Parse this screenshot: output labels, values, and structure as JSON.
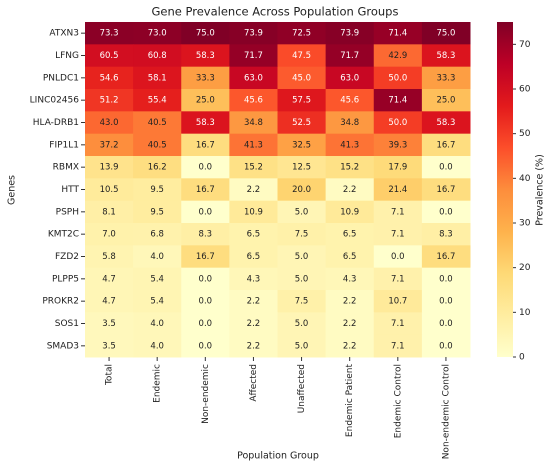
{
  "chart_data": {
    "type": "heatmap",
    "title": "Gene Prevalence Across Population Groups",
    "x_label": "Population Group",
    "y_label": "Genes",
    "colorbar_label": "Prevalence (%)",
    "columns": [
      "Total",
      "Endemic",
      "Non-endemic",
      "Affected",
      "Unaffected",
      "Endemic Patient",
      "Endemic Control",
      "Non-endemic Control"
    ],
    "rows": [
      "ATXN3",
      "LFNG",
      "PNLDC1",
      "LINC02456",
      "HLA-DRB1",
      "FIP1L1",
      "RBMX",
      "HTT",
      "PSPH",
      "KMT2C",
      "FZD2",
      "PLPP5",
      "PROKR2",
      "SOS1",
      "SMAD3"
    ],
    "values": [
      [
        73.3,
        73.0,
        75.0,
        73.9,
        72.5,
        73.9,
        71.4,
        75.0
      ],
      [
        60.5,
        60.8,
        58.3,
        71.7,
        47.5,
        71.7,
        42.9,
        58.3
      ],
      [
        54.6,
        58.1,
        33.3,
        63.0,
        45.0,
        63.0,
        50.0,
        33.3
      ],
      [
        51.2,
        55.4,
        25.0,
        45.6,
        57.5,
        45.6,
        71.4,
        25.0
      ],
      [
        43.0,
        40.5,
        58.3,
        34.8,
        52.5,
        34.8,
        50.0,
        58.3
      ],
      [
        37.2,
        40.5,
        16.7,
        41.3,
        32.5,
        41.3,
        39.3,
        16.7
      ],
      [
        13.9,
        16.2,
        0.0,
        15.2,
        12.5,
        15.2,
        17.9,
        0.0
      ],
      [
        10.5,
        9.5,
        16.7,
        2.2,
        20.0,
        2.2,
        21.4,
        16.7
      ],
      [
        8.1,
        9.5,
        0.0,
        10.9,
        5.0,
        10.9,
        7.1,
        0.0
      ],
      [
        7.0,
        6.8,
        8.3,
        6.5,
        7.5,
        6.5,
        7.1,
        8.3
      ],
      [
        5.8,
        4.0,
        16.7,
        6.5,
        5.0,
        6.5,
        0.0,
        16.7
      ],
      [
        4.7,
        5.4,
        0.0,
        4.3,
        5.0,
        4.3,
        7.1,
        0.0
      ],
      [
        4.7,
        5.4,
        0.0,
        2.2,
        7.5,
        2.2,
        10.7,
        0.0
      ],
      [
        3.5,
        4.0,
        0.0,
        2.2,
        5.0,
        2.2,
        7.1,
        0.0
      ],
      [
        3.5,
        4.0,
        0.0,
        2.2,
        5.0,
        2.2,
        7.1,
        0.0
      ]
    ],
    "value_labels": [
      [
        "73.3",
        "73.0",
        "75.0",
        "73.9",
        "72.5",
        "73.9",
        "71.4",
        "75.0"
      ],
      [
        "60.5",
        "60.8",
        "58.3",
        "71.7",
        "47.5",
        "71.7",
        "42.9",
        "58.3"
      ],
      [
        "54.6",
        "58.1",
        "33.3",
        "63.0",
        "45.0",
        "63.0",
        "50.0",
        "33.3"
      ],
      [
        "51.2",
        "55.4",
        "25.0",
        "45.6",
        "57.5",
        "45.6",
        "71.4",
        "25.0"
      ],
      [
        "43.0",
        "40.5",
        "58.3",
        "34.8",
        "52.5",
        "34.8",
        "50.0",
        "58.3"
      ],
      [
        "37.2",
        "40.5",
        "16.7",
        "41.3",
        "32.5",
        "41.3",
        "39.3",
        "16.7"
      ],
      [
        "13.9",
        "16.2",
        "0.0",
        "15.2",
        "12.5",
        "15.2",
        "17.9",
        "0.0"
      ],
      [
        "10.5",
        "9.5",
        "16.7",
        "2.2",
        "20.0",
        "2.2",
        "21.4",
        "16.7"
      ],
      [
        "8.1",
        "9.5",
        "0.0",
        "10.9",
        "5.0",
        "10.9",
        "7.1",
        "0.0"
      ],
      [
        "7.0",
        "6.8",
        "8.3",
        "6.5",
        "7.5",
        "6.5",
        "7.1",
        "8.3"
      ],
      [
        "5.8",
        "4.0",
        "16.7",
        "6.5",
        "5.0",
        "6.5",
        "0.0",
        "16.7"
      ],
      [
        "4.7",
        "5.4",
        "0.0",
        "4.3",
        "5.0",
        "4.3",
        "7.1",
        "0.0"
      ],
      [
        "4.7",
        "5.4",
        "0.0",
        "2.2",
        "7.5",
        "2.2",
        "10.7",
        "0.0"
      ],
      [
        "3.5",
        "4.0",
        "0.0",
        "2.2",
        "5.0",
        "2.2",
        "7.1",
        "0.0"
      ],
      [
        "3.5",
        "4.0",
        "0.0",
        "2.2",
        "5.0",
        "2.2",
        "7.1",
        "0.0"
      ]
    ],
    "colormap": [
      "#ffffcc",
      "#ffeda0",
      "#fed976",
      "#feb24c",
      "#fd8d3c",
      "#fc4e2a",
      "#e31a1c",
      "#bd0026",
      "#800026"
    ],
    "clim": [
      0,
      75
    ],
    "cticks": [
      0,
      10,
      20,
      30,
      40,
      50,
      60,
      70
    ]
  }
}
